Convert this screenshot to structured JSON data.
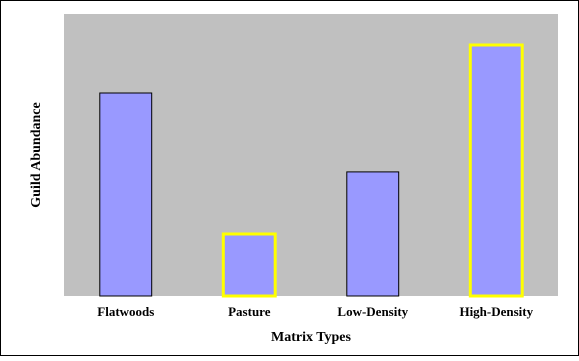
{
  "chart_data": {
    "type": "bar",
    "categories": [
      "Flatwoods",
      "Pasture",
      "Low-Density",
      "High-Density"
    ],
    "values": [
      0.72,
      0.22,
      0.44,
      0.89
    ],
    "highlighted": [
      false,
      true,
      false,
      true
    ],
    "xlabel": "Matrix Types",
    "ylabel": "Guild Abundance",
    "ylim": [
      0,
      1
    ],
    "grid": false,
    "legend": "none",
    "y_tick_labels_shown": false
  },
  "colors": {
    "plot_background": "#c0c0c0",
    "bar_fill": "#9999ff",
    "bar_edge": "#000000",
    "highlight_edge": "#ffff00",
    "frame": "#000000"
  }
}
